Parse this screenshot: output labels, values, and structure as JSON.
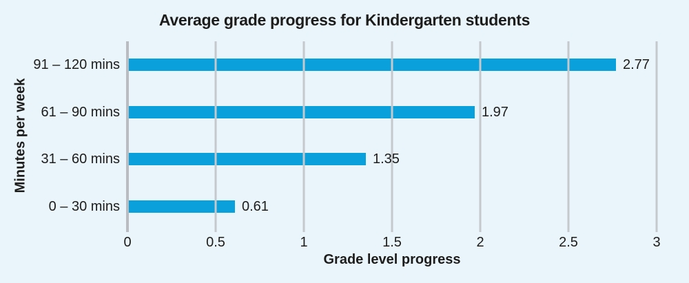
{
  "page": {
    "background_color": "#e9f4fb",
    "text_color": "#1d1d1b"
  },
  "chart_data": {
    "type": "bar",
    "orientation": "horizontal",
    "title": "Average grade progress for Kindergarten students",
    "xlabel": "Grade level progress",
    "ylabel": "Minutes per week",
    "categories": [
      "91 – 120 mins",
      "61 – 90 mins",
      "31 – 60 mins",
      "0 – 30 mins"
    ],
    "values": [
      2.77,
      1.97,
      1.35,
      0.61
    ],
    "value_labels": [
      "2.77",
      "1.97",
      "1.35",
      "0.61"
    ],
    "xlim": [
      0,
      3
    ],
    "xticks": [
      0,
      0.5,
      1,
      1.5,
      2,
      2.5,
      3
    ],
    "xtick_labels": [
      "0",
      "0.5",
      "1",
      "1.5",
      "2",
      "2.5",
      "3"
    ],
    "grid": true,
    "gridlines_over_bars": true,
    "legend": false,
    "bar_color": "#09a0dc",
    "gridline_color": "#c5c9cc",
    "axis_line_color": "#b9bdc1"
  }
}
